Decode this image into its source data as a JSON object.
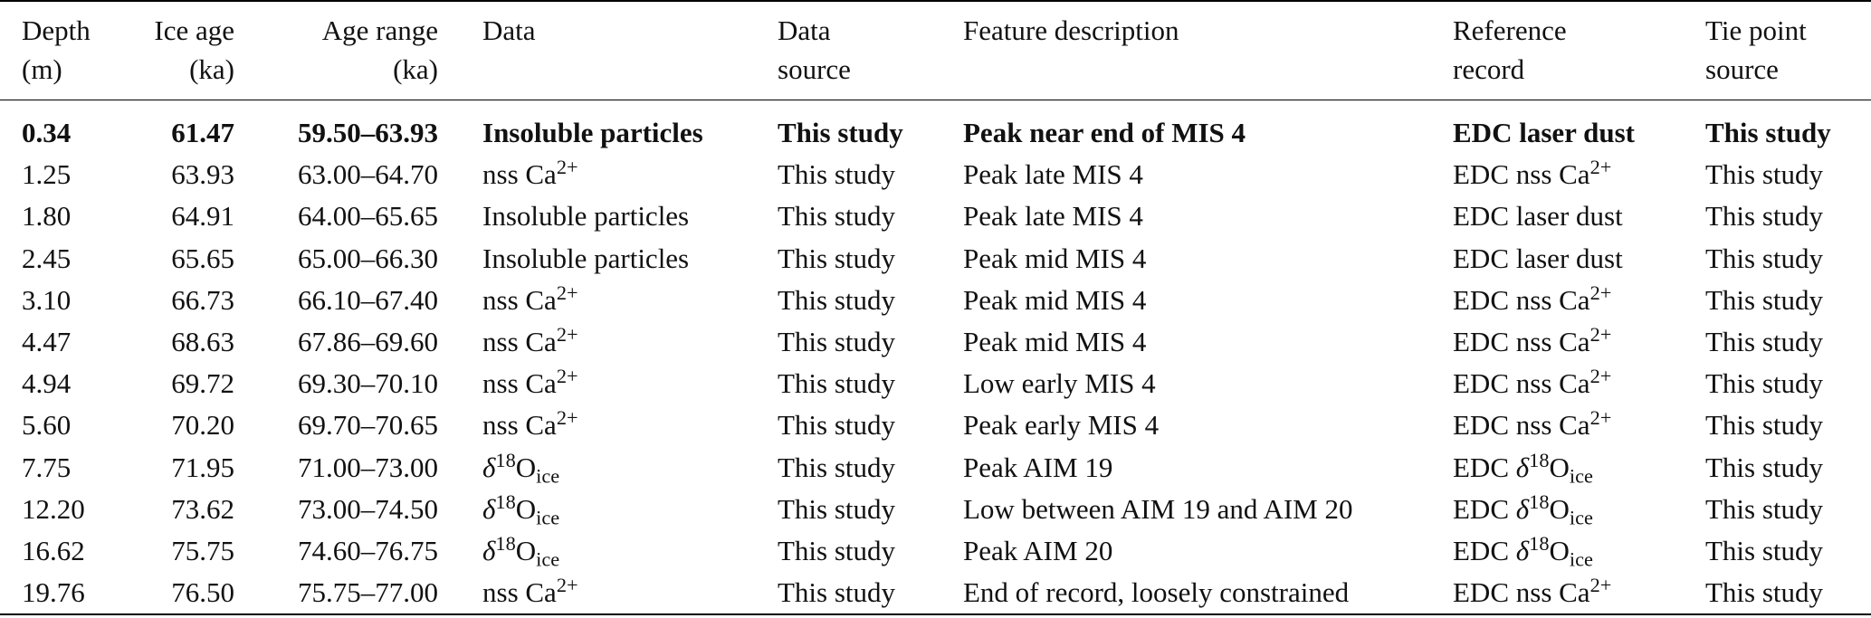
{
  "table": {
    "headers": {
      "depth": [
        "Depth",
        "(m)"
      ],
      "ice_age": [
        "Ice age",
        "(ka)"
      ],
      "age_range": [
        "Age range",
        "(ka)"
      ],
      "data": [
        "Data",
        ""
      ],
      "data_source": [
        "Data",
        "source"
      ],
      "feature_description": [
        "Feature description",
        ""
      ],
      "reference_record": [
        "Reference",
        "record"
      ],
      "tie_point_source": [
        "Tie point",
        "source"
      ]
    },
    "rows": [
      {
        "depth": "0.34",
        "ice_age": "61.47",
        "age_range": "59.50–63.93",
        "data": "Insoluble particles",
        "data_source": "This study",
        "feature": "Peak near end of MIS 4",
        "reference": "EDC laser dust",
        "tie_source": "This study",
        "bold": true
      },
      {
        "depth": "1.25",
        "ice_age": "63.93",
        "age_range": "63.00–64.70",
        "data": "nss Ca2+",
        "data_source": "This study",
        "feature": "Peak late MIS 4",
        "reference": "EDC nss Ca2+",
        "tie_source": "This study"
      },
      {
        "depth": "1.80",
        "ice_age": "64.91",
        "age_range": "64.00–65.65",
        "data": "Insoluble particles",
        "data_source": "This study",
        "feature": "Peak late MIS 4",
        "reference": "EDC laser dust",
        "tie_source": "This study"
      },
      {
        "depth": "2.45",
        "ice_age": "65.65",
        "age_range": "65.00–66.30",
        "data": "Insoluble particles",
        "data_source": "This study",
        "feature": "Peak mid MIS 4",
        "reference": "EDC laser dust",
        "tie_source": "This study"
      },
      {
        "depth": "3.10",
        "ice_age": "66.73",
        "age_range": "66.10–67.40",
        "data": "nss Ca2+",
        "data_source": "This study",
        "feature": "Peak mid MIS 4",
        "reference": "EDC nss Ca2+",
        "tie_source": "This study"
      },
      {
        "depth": "4.47",
        "ice_age": "68.63",
        "age_range": "67.86–69.60",
        "data": "nss Ca2+",
        "data_source": "This study",
        "feature": "Peak mid MIS 4",
        "reference": "EDC nss Ca2+",
        "tie_source": "This study"
      },
      {
        "depth": "4.94",
        "ice_age": "69.72",
        "age_range": "69.30–70.10",
        "data": "nss Ca2+",
        "data_source": "This study",
        "feature": "Low early MIS 4",
        "reference": "EDC nss Ca2+",
        "tie_source": "This study"
      },
      {
        "depth": "5.60",
        "ice_age": "70.20",
        "age_range": "69.70–70.65",
        "data": "nss Ca2+",
        "data_source": "This study",
        "feature": "Peak early MIS 4",
        "reference": "EDC nss Ca2+",
        "tie_source": "This study"
      },
      {
        "depth": "7.75",
        "ice_age": "71.95",
        "age_range": "71.00–73.00",
        "data": "δ18Oice",
        "data_source": "This study",
        "feature": "Peak AIM 19",
        "reference": "EDC δ18Oice",
        "tie_source": "This study"
      },
      {
        "depth": "12.20",
        "ice_age": "73.62",
        "age_range": "73.00–74.50",
        "data": "δ18Oice",
        "data_source": "This study",
        "feature": "Low between AIM 19 and AIM 20",
        "reference": "EDC δ18Oice",
        "tie_source": "This study"
      },
      {
        "depth": "16.62",
        "ice_age": "75.75",
        "age_range": "74.60–76.75",
        "data": "δ18Oice",
        "data_source": "This study",
        "feature": "Peak AIM 20",
        "reference": "EDC δ18Oice",
        "tie_source": "This study"
      },
      {
        "depth": "19.76",
        "ice_age": "76.50",
        "age_range": "75.75–77.00",
        "data": "nss Ca2+",
        "data_source": "This study",
        "feature": "End of record, loosely constrained",
        "reference": "EDC nss Ca2+",
        "tie_source": "This study"
      }
    ]
  }
}
